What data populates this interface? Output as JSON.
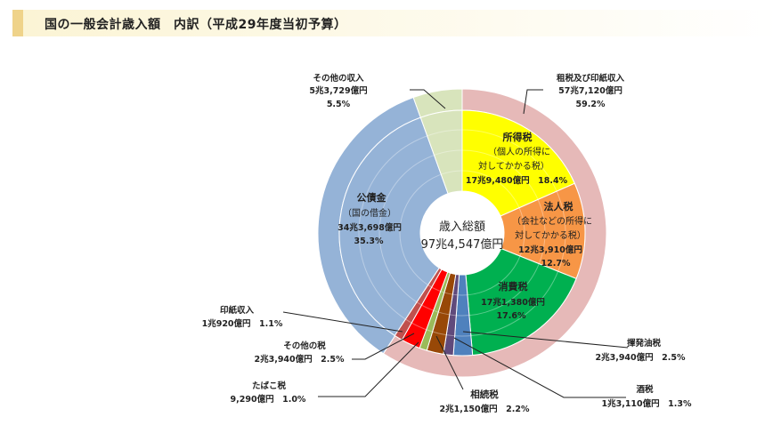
{
  "header": {
    "title": "国の一般会計歳入額　内訳（平成29年度当初予算）"
  },
  "chart_data": {
    "type": "pie",
    "title": "国の一般会計歳入額　内訳（平成29年度当初予算）",
    "center_label": {
      "line1": "歳入総額",
      "line2": "97兆4,547億円"
    },
    "total_oku_yen": 974547,
    "outer_ring": [
      {
        "id": "sozei",
        "name": "租税及び印紙収入",
        "amount": "57兆7,120億円",
        "percent": 59.2,
        "color": "#e6b9b8"
      },
      {
        "id": "kosaikin-outer",
        "name": "公債金",
        "amount": "34兆3,698億円",
        "percent": 35.3,
        "color": "#95b3d7"
      },
      {
        "id": "sonota-shunyu",
        "name": "その他の収入",
        "amount": "5兆3,729億円",
        "percent": 5.5,
        "color": "#d8e4bc"
      }
    ],
    "inner_ring": [
      {
        "id": "shotokuzei",
        "name": "所得税",
        "note1": "（個人の所得に",
        "note2": "対してかかる税）",
        "amount": "17兆9,480億円",
        "percent": 18.4,
        "color": "#ffff00"
      },
      {
        "id": "hojinzei",
        "name": "法人税",
        "note1": "（会社などの所得に",
        "note2": "対してかかる税）",
        "amount": "12兆3,910億円",
        "percent": 12.7,
        "color": "#f79646"
      },
      {
        "id": "shohizei",
        "name": "消費税",
        "amount": "17兆1,380億円",
        "percent": 17.6,
        "color": "#00b050"
      },
      {
        "id": "kihatsuyuzei",
        "name": "揮発油税",
        "amount": "2兆3,940億円",
        "percent": 2.5,
        "color": "#4f81bd"
      },
      {
        "id": "shuzei",
        "name": "酒税",
        "amount": "1兆3,110億円",
        "percent": 1.3,
        "color": "#604a7b"
      },
      {
        "id": "sozokuzei",
        "name": "相続税",
        "amount": "2兆1,150億円",
        "percent": 2.2,
        "color": "#984807"
      },
      {
        "id": "tabakozei",
        "name": "たばこ税",
        "amount": "9,290億円",
        "percent": 1.0,
        "color": "#9bbb59"
      },
      {
        "id": "sonota-zei",
        "name": "その他の税",
        "amount": "2兆3,940億円",
        "percent": 2.5,
        "color": "#ff0000"
      },
      {
        "id": "inshi",
        "name": "印紙収入",
        "amount": "1兆920億円",
        "percent": 1.1,
        "color": "#c0504d"
      },
      {
        "id": "kosaikin",
        "name": "公債金",
        "note1": "（国の借金）",
        "amount": "34兆3,698億円",
        "percent": 35.3,
        "color": "#95b3d7"
      },
      {
        "id": "sonota-shunyu-inner",
        "name": "その他の収入",
        "amount": "5兆3,729億円",
        "percent": 5.5,
        "color": "#d8e4bc"
      }
    ]
  }
}
